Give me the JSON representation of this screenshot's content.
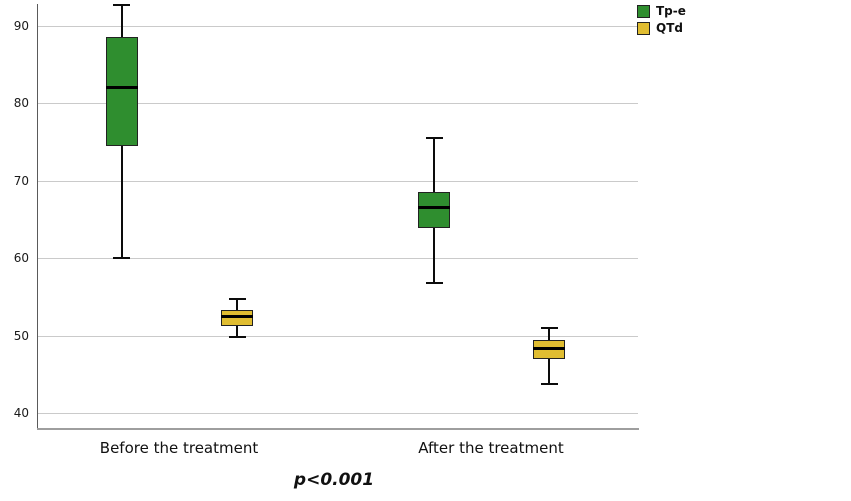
{
  "legend": {
    "items": [
      {
        "label": "Tp-e",
        "color": "#2f8e2f"
      },
      {
        "label": "QTd",
        "color": "#e0bd31"
      }
    ]
  },
  "footnote": "p<0.001",
  "chart_data": {
    "type": "boxplot",
    "title": "",
    "categories": [
      "Before the treatment",
      "After the treatment"
    ],
    "y_ticks": [
      40,
      50,
      60,
      70,
      80,
      90
    ],
    "ylim": [
      37.5,
      92.8
    ],
    "grid": true,
    "legend_position": "top-right",
    "annotation": "p<0.001",
    "series": [
      {
        "name": "Tp-e",
        "color": "#2f8e2f",
        "boxes": [
          {
            "category": "Before the treatment",
            "min": 60.0,
            "q1": 74.5,
            "median": 82.0,
            "q3": 88.6,
            "max": 92.7
          },
          {
            "category": "After the treatment",
            "min": 56.8,
            "q1": 63.9,
            "median": 66.6,
            "q3": 68.6,
            "max": 75.6
          }
        ]
      },
      {
        "name": "QTd",
        "color": "#e0bd31",
        "boxes": [
          {
            "category": "Before the treatment",
            "min": 49.8,
            "q1": 51.2,
            "median": 52.5,
            "q3": 53.3,
            "max": 54.8
          },
          {
            "category": "After the treatment",
            "min": 43.8,
            "q1": 47.0,
            "median": 48.3,
            "q3": 49.5,
            "max": 51.0
          }
        ]
      }
    ]
  }
}
